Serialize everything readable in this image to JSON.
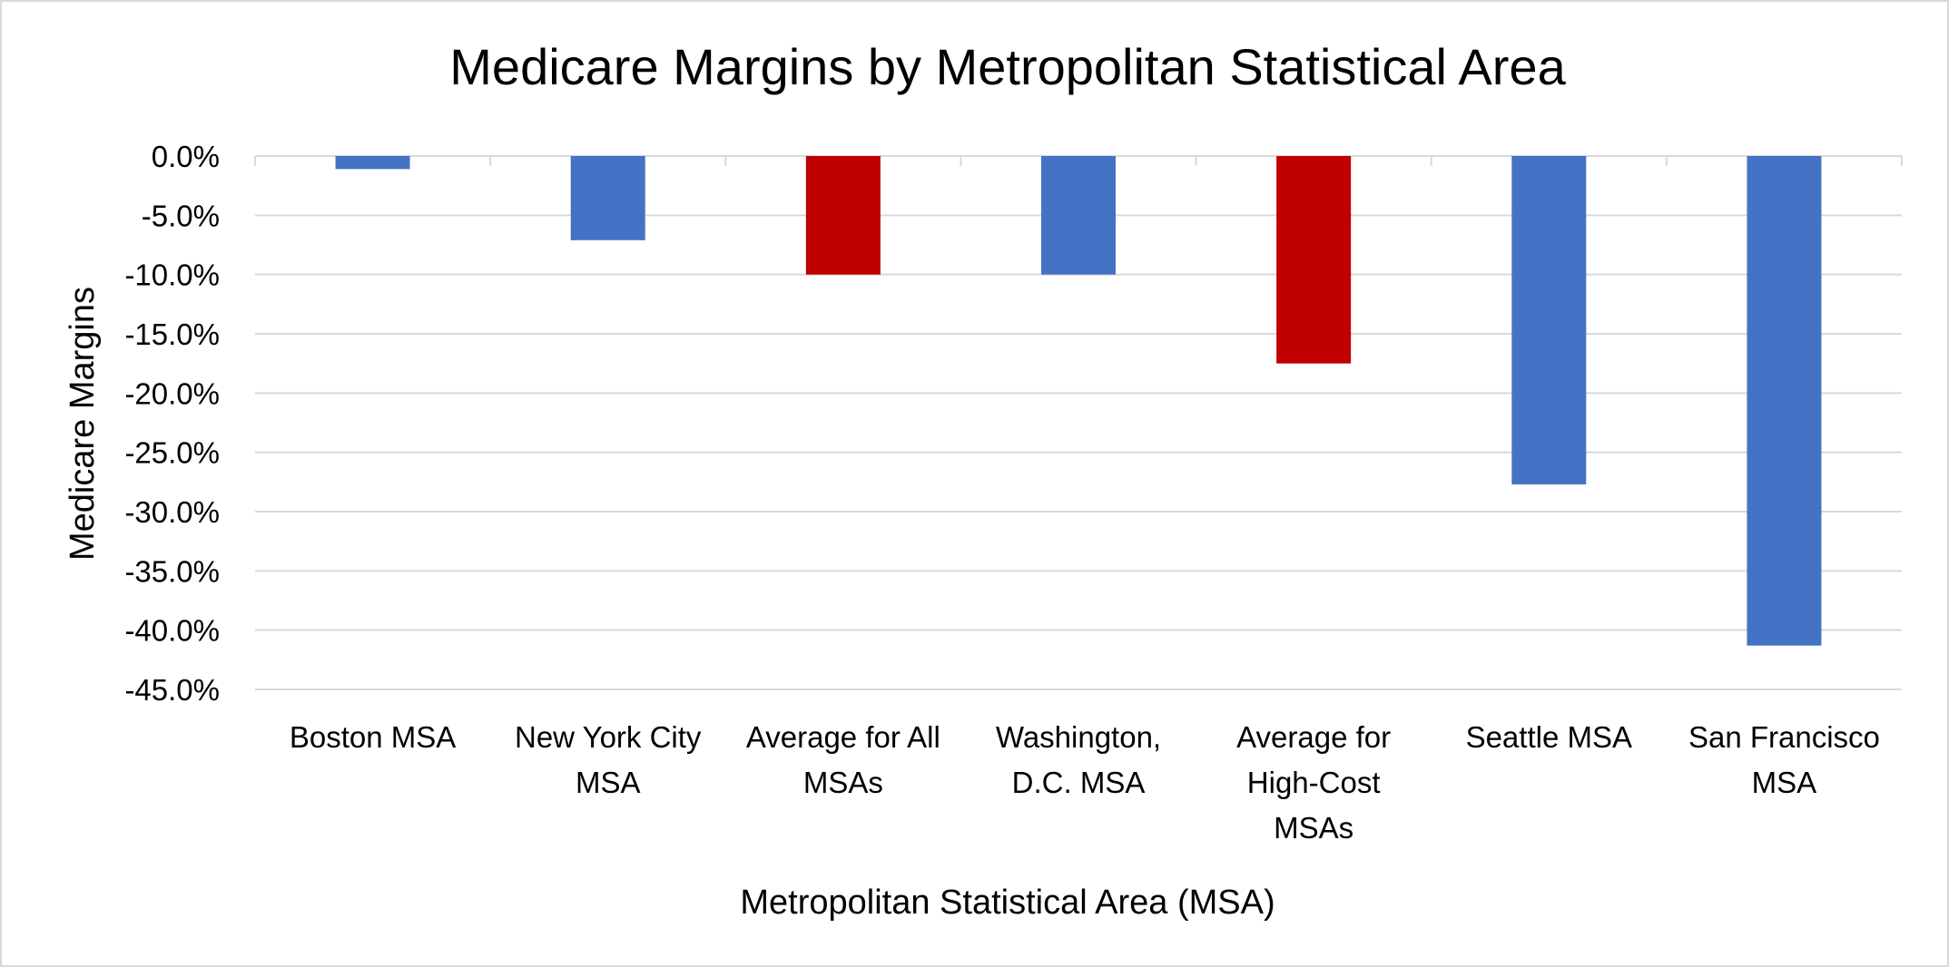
{
  "chart_data": {
    "type": "bar",
    "title": "Medicare Margins by Metropolitan Statistical Area",
    "xlabel": "Metropolitan Statistical Area (MSA)",
    "ylabel": "Medicare Margins",
    "categories": [
      [
        "Boston MSA"
      ],
      [
        "New York City",
        "MSA"
      ],
      [
        "Average for All",
        "MSAs"
      ],
      [
        "Washington,",
        "D.C. MSA"
      ],
      [
        "Average for",
        "High-Cost",
        "MSAs"
      ],
      [
        "Seattle MSA"
      ],
      [
        "San Francisco",
        "MSA"
      ]
    ],
    "values": [
      -1.1,
      -7.1,
      -10.0,
      -10.0,
      -17.5,
      -27.7,
      -41.3
    ],
    "bar_colors": [
      "#4472C4",
      "#4472C4",
      "#C00000",
      "#4472C4",
      "#C00000",
      "#4472C4",
      "#4472C4"
    ],
    "ylim": [
      -45,
      0
    ],
    "yticks": [
      0,
      -5,
      -10,
      -15,
      -20,
      -25,
      -30,
      -35,
      -40,
      -45
    ],
    "ytick_labels": [
      "0.0%",
      "-5.0%",
      "-10.0%",
      "-15.0%",
      "-20.0%",
      "-25.0%",
      "-30.0%",
      "-35.0%",
      "-40.0%",
      "-45.0%"
    ],
    "grid": true,
    "legend": "none",
    "gridline_color": "#d9d9d9"
  }
}
